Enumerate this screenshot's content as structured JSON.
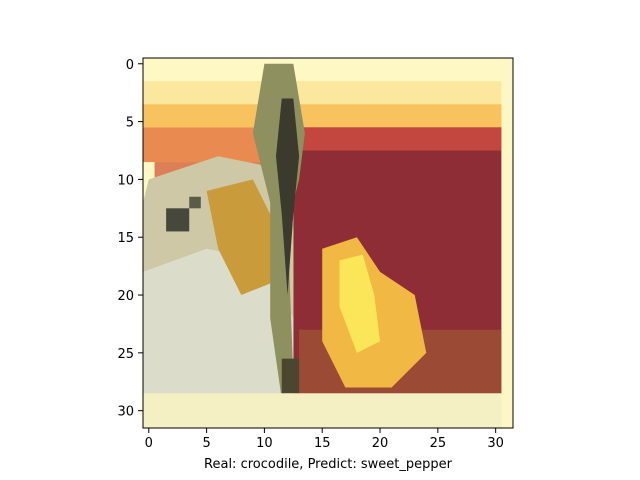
{
  "chart_data": {
    "type": "image",
    "xlabel": "Real: crocodile, Predict: sweet_pepper",
    "xlim": [
      -0.5,
      31.5
    ],
    "ylim": [
      31.5,
      -0.5
    ],
    "xticks": [
      0,
      5,
      10,
      15,
      20,
      25,
      30
    ],
    "yticks": [
      0,
      5,
      10,
      15,
      20,
      25,
      30
    ]
  }
}
